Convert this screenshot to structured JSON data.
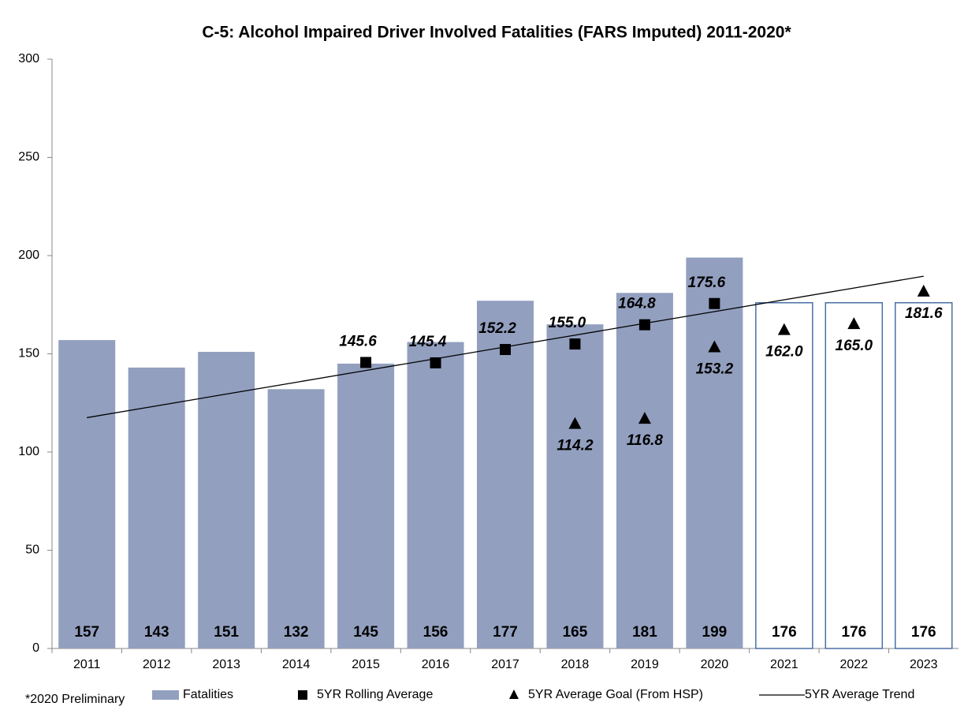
{
  "chart_data": {
    "type": "combo",
    "title": "C-5: Alcohol Impaired Driver Involved Fatalities (FARS Imputed) 2011-2020*",
    "footnote": "*2020 Preliminary",
    "categories": [
      "2011",
      "2012",
      "2013",
      "2014",
      "2015",
      "2016",
      "2017",
      "2018",
      "2019",
      "2020",
      "2021",
      "2022",
      "2023"
    ],
    "ylim": [
      0,
      300
    ],
    "yticks": [
      0,
      50,
      100,
      150,
      200,
      250,
      300
    ],
    "grid": false,
    "legend": "bottom",
    "series": [
      {
        "name": "Fatalities",
        "type": "bar",
        "color": "#929fbf",
        "edge_color": "#4a6fa5",
        "bar_fills": [
          "#929fbf",
          "#929fbf",
          "#929fbf",
          "#929fbf",
          "#929fbf",
          "#929fbf",
          "#929fbf",
          "#929fbf",
          "#929fbf",
          "#929fbf",
          "#ffffff",
          "#ffffff",
          "#ffffff"
        ],
        "values": [
          157,
          143,
          151,
          132,
          145,
          156,
          177,
          165,
          181,
          199,
          176,
          176,
          176
        ]
      },
      {
        "name": "5YR Rolling Average",
        "type": "marker",
        "marker": "square",
        "color": "#000000",
        "values": [
          null,
          null,
          null,
          null,
          145.6,
          145.4,
          152.2,
          155.0,
          164.8,
          175.6,
          null,
          null,
          null
        ],
        "value_labels": [
          null,
          null,
          null,
          null,
          "145.6",
          "145.4",
          "152.2",
          "155.0",
          "164.8",
          "175.6",
          null,
          null,
          null
        ]
      },
      {
        "name": "5YR Average Goal (From HSP)",
        "type": "marker",
        "marker": "triangle",
        "color": "#000000",
        "values": [
          null,
          null,
          null,
          null,
          null,
          null,
          null,
          114.2,
          116.8,
          153.2,
          162.0,
          165.0,
          181.6
        ],
        "value_labels": [
          null,
          null,
          null,
          null,
          null,
          null,
          null,
          "114.2",
          "116.8",
          "153.2",
          "162.0",
          "165.0",
          "181.6"
        ]
      },
      {
        "name": "5YR Average Trend",
        "type": "line",
        "color": "#000000",
        "values": [
          117.5,
          123.5,
          129.5,
          135.5,
          141.5,
          147.5,
          153.5,
          159.5,
          165.5,
          171.5,
          177.5,
          183.5,
          189.5
        ]
      }
    ]
  }
}
